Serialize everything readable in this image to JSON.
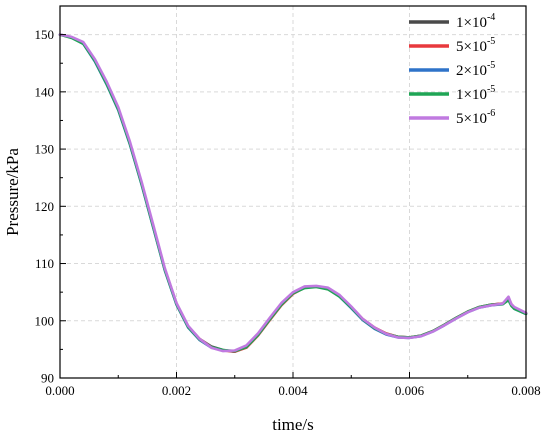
{
  "chart_data": {
    "type": "line",
    "xlabel": "time/s",
    "ylabel": "Pressure/kPa",
    "xlim": [
      0.0,
      0.008
    ],
    "ylim": [
      90,
      155
    ],
    "x_ticks": [
      "0.000",
      "0.002",
      "0.004",
      "0.006",
      "0.008"
    ],
    "y_ticks": [
      "90",
      "100",
      "110",
      "120",
      "130",
      "140",
      "150"
    ],
    "grid": true,
    "legend_position": "top-right",
    "series": [
      {
        "name": "1×10⁻⁴",
        "legend_base": "1×10",
        "legend_exp": "-4",
        "color": "#4a4a4a",
        "x": [
          0,
          0.0002,
          0.0004,
          0.0006,
          0.0008,
          0.001,
          0.0012,
          0.0014,
          0.0016,
          0.0018,
          0.002,
          0.0022,
          0.0024,
          0.0026,
          0.0028,
          0.003,
          0.0032,
          0.0034,
          0.0036,
          0.0038,
          0.004,
          0.0042,
          0.0044,
          0.0046,
          0.0048,
          0.005,
          0.0052,
          0.0054,
          0.0056,
          0.0058,
          0.006,
          0.0062,
          0.0064,
          0.0066,
          0.0068,
          0.007,
          0.0072,
          0.0074,
          0.0076,
          0.0077,
          0.00775,
          0.0078,
          0.008
        ],
        "y": [
          150,
          149.5,
          148.5,
          145.5,
          141.5,
          137,
          131,
          124,
          116.5,
          109,
          103,
          99,
          96.8,
          95.5,
          94.9,
          94.6,
          95.4,
          97.5,
          100.2,
          102.8,
          104.8,
          105.8,
          106,
          105.6,
          104.3,
          102.3,
          100.2,
          98.7,
          97.7,
          97.2,
          97.1,
          97.4,
          98.2,
          99.3,
          100.5,
          101.6,
          102.4,
          102.8,
          103,
          103.8,
          102.8,
          102.2,
          101.3
        ]
      },
      {
        "name": "5×10⁻⁵",
        "legend_base": "5×10",
        "legend_exp": "-5",
        "color": "#e8393d",
        "x": [
          0,
          0.0002,
          0.0004,
          0.0006,
          0.0008,
          0.001,
          0.0012,
          0.0014,
          0.0016,
          0.0018,
          0.002,
          0.0022,
          0.0024,
          0.0026,
          0.0028,
          0.003,
          0.0032,
          0.0034,
          0.0036,
          0.0038,
          0.004,
          0.0042,
          0.0044,
          0.0046,
          0.0048,
          0.005,
          0.0052,
          0.0054,
          0.0056,
          0.0058,
          0.006,
          0.0062,
          0.0064,
          0.0066,
          0.0068,
          0.007,
          0.0072,
          0.0074,
          0.0076,
          0.0077,
          0.00775,
          0.0078,
          0.008
        ],
        "y": [
          150,
          149.5,
          148.5,
          145.5,
          141.5,
          137,
          131,
          124,
          116.5,
          109,
          103,
          99,
          96.8,
          95.4,
          94.8,
          94.6,
          95.3,
          97.4,
          100.1,
          102.7,
          104.7,
          105.8,
          106,
          105.7,
          104.4,
          102.4,
          100.3,
          98.8,
          97.8,
          97.2,
          97.1,
          97.4,
          98.2,
          99.3,
          100.5,
          101.6,
          102.4,
          102.8,
          103,
          104,
          102.9,
          102.3,
          101.2
        ]
      },
      {
        "name": "2×10⁻⁵",
        "legend_base": "2×10",
        "legend_exp": "-5",
        "color": "#2f73c9",
        "x": [
          0,
          0.0002,
          0.0004,
          0.0006,
          0.0008,
          0.001,
          0.0012,
          0.0014,
          0.0016,
          0.0018,
          0.002,
          0.0022,
          0.0024,
          0.0026,
          0.0028,
          0.003,
          0.0032,
          0.0034,
          0.0036,
          0.0038,
          0.004,
          0.0042,
          0.0044,
          0.0046,
          0.0048,
          0.005,
          0.0052,
          0.0054,
          0.0056,
          0.0058,
          0.006,
          0.0062,
          0.0064,
          0.0066,
          0.0068,
          0.007,
          0.0072,
          0.0074,
          0.0076,
          0.0077,
          0.00775,
          0.0078,
          0.008
        ],
        "y": [
          150,
          149.5,
          148.4,
          145.3,
          141.3,
          136.8,
          130.8,
          123.8,
          116.3,
          108.8,
          102.8,
          98.8,
          96.6,
          95.3,
          94.8,
          94.7,
          95.5,
          97.6,
          100.3,
          102.9,
          104.9,
          105.9,
          106,
          105.6,
          104.2,
          102.2,
          100.1,
          98.6,
          97.6,
          97.1,
          97,
          97.3,
          98.1,
          99.2,
          100.4,
          101.5,
          102.3,
          102.7,
          102.9,
          103.7,
          102.7,
          102.1,
          101.2
        ]
      },
      {
        "name": "1×10⁻⁵",
        "legend_base": "1×10",
        "legend_exp": "-5",
        "color": "#1fa555",
        "x": [
          0,
          0.0002,
          0.0004,
          0.0006,
          0.0008,
          0.001,
          0.0012,
          0.0014,
          0.0016,
          0.0018,
          0.002,
          0.0022,
          0.0024,
          0.0026,
          0.0028,
          0.003,
          0.0032,
          0.0034,
          0.0036,
          0.0038,
          0.004,
          0.0042,
          0.0044,
          0.0046,
          0.0048,
          0.005,
          0.0052,
          0.0054,
          0.0056,
          0.0058,
          0.006,
          0.0062,
          0.0064,
          0.0066,
          0.0068,
          0.007,
          0.0072,
          0.0074,
          0.0076,
          0.0077,
          0.00775,
          0.0078,
          0.008
        ],
        "y": [
          150,
          149.4,
          148.4,
          145.4,
          141.4,
          136.9,
          130.9,
          123.9,
          116.4,
          108.9,
          102.9,
          98.9,
          96.7,
          95.4,
          94.9,
          94.7,
          95.4,
          97.5,
          100.2,
          102.8,
          104.8,
          105.7,
          105.9,
          105.5,
          104.2,
          102.3,
          100.2,
          98.7,
          97.7,
          97.2,
          97.1,
          97.4,
          98.2,
          99.3,
          100.5,
          101.6,
          102.4,
          102.8,
          102.9,
          103.6,
          102.6,
          102.1,
          101.2
        ]
      },
      {
        "name": "5×10⁻⁶",
        "legend_base": "5×10",
        "legend_exp": "-6",
        "color": "#c07ae0",
        "x": [
          0,
          0.0002,
          0.0004,
          0.0006,
          0.0008,
          0.001,
          0.0012,
          0.0014,
          0.0016,
          0.0018,
          0.002,
          0.0022,
          0.0024,
          0.0026,
          0.0028,
          0.003,
          0.0032,
          0.0034,
          0.0036,
          0.0038,
          0.004,
          0.0042,
          0.0044,
          0.0046,
          0.0048,
          0.005,
          0.0052,
          0.0054,
          0.0056,
          0.0058,
          0.006,
          0.0062,
          0.0064,
          0.0066,
          0.0068,
          0.007,
          0.0072,
          0.0074,
          0.0076,
          0.0077,
          0.00775,
          0.0078,
          0.008
        ],
        "y": [
          150,
          149.6,
          148.7,
          145.7,
          141.8,
          137.3,
          131.3,
          124.3,
          116.8,
          109.2,
          103.1,
          99.1,
          96.8,
          95.3,
          94.7,
          94.8,
          95.7,
          97.8,
          100.5,
          103.1,
          105,
          106,
          106.1,
          105.8,
          104.5,
          102.5,
          100.3,
          98.8,
          97.7,
          97.1,
          97,
          97.3,
          98.1,
          99.2,
          100.4,
          101.5,
          102.3,
          102.7,
          103,
          104.2,
          102.9,
          102.4,
          101.4
        ]
      }
    ]
  }
}
